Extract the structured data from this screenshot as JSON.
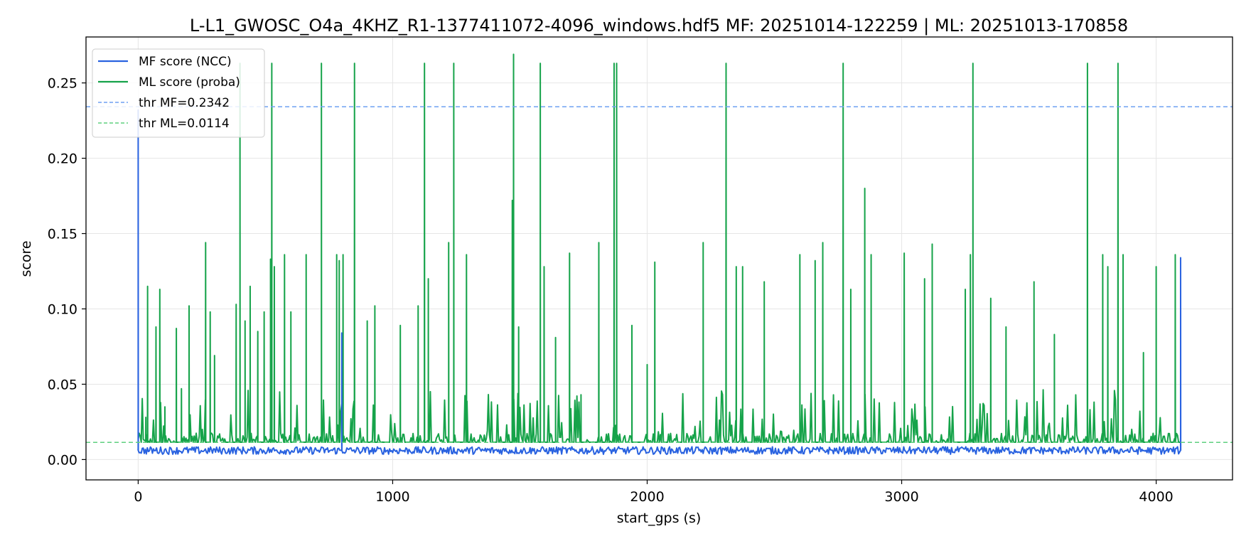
{
  "chart_data": {
    "type": "line",
    "title": "L-L1_GWOSC_O4a_4KHZ_R1-1377411072-4096_windows.hdf5  MF: 20251014-122259 | ML: 20251013-170858",
    "xlabel": "start_gps (s)",
    "ylabel": "score",
    "xlim": [
      -205,
      4300
    ],
    "ylim": [
      -0.0135,
      0.2805
    ],
    "x_ticks": [
      0,
      1000,
      2000,
      3000,
      4000
    ],
    "y_ticks": [
      0.0,
      0.05,
      0.1,
      0.15,
      0.2,
      0.25
    ],
    "y_tick_labels": [
      "0.00",
      "0.05",
      "0.10",
      "0.15",
      "0.20",
      "0.25"
    ],
    "grid": true,
    "legend_position": "upper-left",
    "x_range": [
      0,
      4096
    ],
    "series": [
      {
        "name": "MF score (NCC)",
        "color": "#2962e0",
        "baseline": 0.006,
        "noise": 0.0025,
        "spikes": [
          [
            0,
            0.232
          ],
          [
            800,
            0.084
          ],
          [
            4096,
            0.134
          ]
        ]
      },
      {
        "name": "ML score (proba)",
        "color": "#16a34a",
        "baseline": 0.0115,
        "spikes": [
          [
            30,
            0.028
          ],
          [
            37,
            0.115
          ],
          [
            70,
            0.088
          ],
          [
            85,
            0.113
          ],
          [
            105,
            0.035
          ],
          [
            150,
            0.087
          ],
          [
            170,
            0.047
          ],
          [
            200,
            0.102
          ],
          [
            265,
            0.144
          ],
          [
            283,
            0.098
          ],
          [
            300,
            0.069
          ],
          [
            385,
            0.103
          ],
          [
            400,
            0.263
          ],
          [
            420,
            0.092
          ],
          [
            440,
            0.115
          ],
          [
            470,
            0.085
          ],
          [
            495,
            0.098
          ],
          [
            520,
            0.133
          ],
          [
            525,
            0.263
          ],
          [
            535,
            0.128
          ],
          [
            575,
            0.136
          ],
          [
            600,
            0.098
          ],
          [
            660,
            0.136
          ],
          [
            720,
            0.263
          ],
          [
            780,
            0.136
          ],
          [
            790,
            0.132
          ],
          [
            805,
            0.136
          ],
          [
            850,
            0.263
          ],
          [
            900,
            0.092
          ],
          [
            930,
            0.102
          ],
          [
            1030,
            0.089
          ],
          [
            1100,
            0.102
          ],
          [
            1125,
            0.263
          ],
          [
            1140,
            0.12
          ],
          [
            1220,
            0.144
          ],
          [
            1240,
            0.263
          ],
          [
            1290,
            0.136
          ],
          [
            1470,
            0.172
          ],
          [
            1475,
            0.269
          ],
          [
            1495,
            0.088
          ],
          [
            1580,
            0.263
          ],
          [
            1595,
            0.128
          ],
          [
            1640,
            0.081
          ],
          [
            1695,
            0.137
          ],
          [
            1740,
            0.043
          ],
          [
            1810,
            0.144
          ],
          [
            1870,
            0.263
          ],
          [
            1880,
            0.263
          ],
          [
            1940,
            0.089
          ],
          [
            2000,
            0.063
          ],
          [
            2030,
            0.131
          ],
          [
            2220,
            0.144
          ],
          [
            2310,
            0.263
          ],
          [
            2350,
            0.128
          ],
          [
            2375,
            0.128
          ],
          [
            2460,
            0.118
          ],
          [
            2600,
            0.136
          ],
          [
            2660,
            0.132
          ],
          [
            2690,
            0.144
          ],
          [
            2770,
            0.263
          ],
          [
            2800,
            0.113
          ],
          [
            2855,
            0.18
          ],
          [
            2880,
            0.136
          ],
          [
            3010,
            0.137
          ],
          [
            3090,
            0.12
          ],
          [
            3120,
            0.143
          ],
          [
            3250,
            0.113
          ],
          [
            3270,
            0.136
          ],
          [
            3280,
            0.263
          ],
          [
            3350,
            0.107
          ],
          [
            3410,
            0.088
          ],
          [
            3520,
            0.118
          ],
          [
            3600,
            0.083
          ],
          [
            3730,
            0.263
          ],
          [
            3790,
            0.136
          ],
          [
            3810,
            0.128
          ],
          [
            3850,
            0.263
          ],
          [
            3870,
            0.136
          ],
          [
            3950,
            0.071
          ],
          [
            4000,
            0.128
          ],
          [
            4075,
            0.136
          ]
        ]
      }
    ],
    "thresholds": [
      {
        "name": "thr MF=0.2342",
        "value": 0.2342,
        "color": "#6ea1f2"
      },
      {
        "name": "thr ML=0.0114",
        "value": 0.0114,
        "color": "#5fd07f"
      }
    ]
  }
}
